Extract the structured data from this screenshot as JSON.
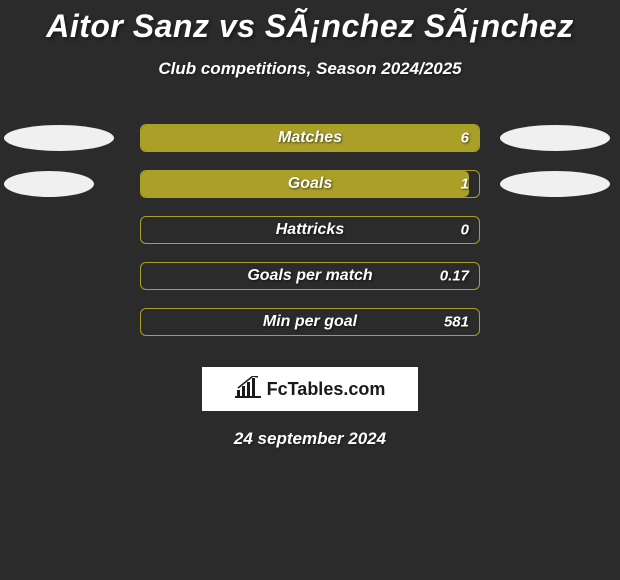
{
  "title": "Aitor Sanz vs SÃ¡nchez SÃ¡nchez",
  "subtitle": "Club competitions, Season 2024/2025",
  "date": "24 september 2024",
  "logo_text": "FcTables.com",
  "colors": {
    "background": "#2b2b2b",
    "bar_fill": "#aaa028",
    "bar_border": "#aaa028",
    "ellipse": "#f0f0f0",
    "text": "#ffffff",
    "logo_bg": "#ffffff",
    "logo_text": "#1a1a1a"
  },
  "stats": [
    {
      "label": "Matches",
      "value": "6",
      "fill_pct": 100,
      "show_left_ellipse": true,
      "show_right_ellipse": true,
      "left_ellipse_width": 110,
      "right_ellipse_width": 110
    },
    {
      "label": "Goals",
      "value": "1",
      "fill_pct": 97,
      "show_left_ellipse": true,
      "show_right_ellipse": true,
      "left_ellipse_width": 90,
      "right_ellipse_width": 110
    },
    {
      "label": "Hattricks",
      "value": "0",
      "fill_pct": 0,
      "show_left_ellipse": false,
      "show_right_ellipse": false
    },
    {
      "label": "Goals per match",
      "value": "0.17",
      "fill_pct": 0,
      "show_left_ellipse": false,
      "show_right_ellipse": false
    },
    {
      "label": "Min per goal",
      "value": "581",
      "fill_pct": 0,
      "show_left_ellipse": false,
      "show_right_ellipse": false
    }
  ]
}
